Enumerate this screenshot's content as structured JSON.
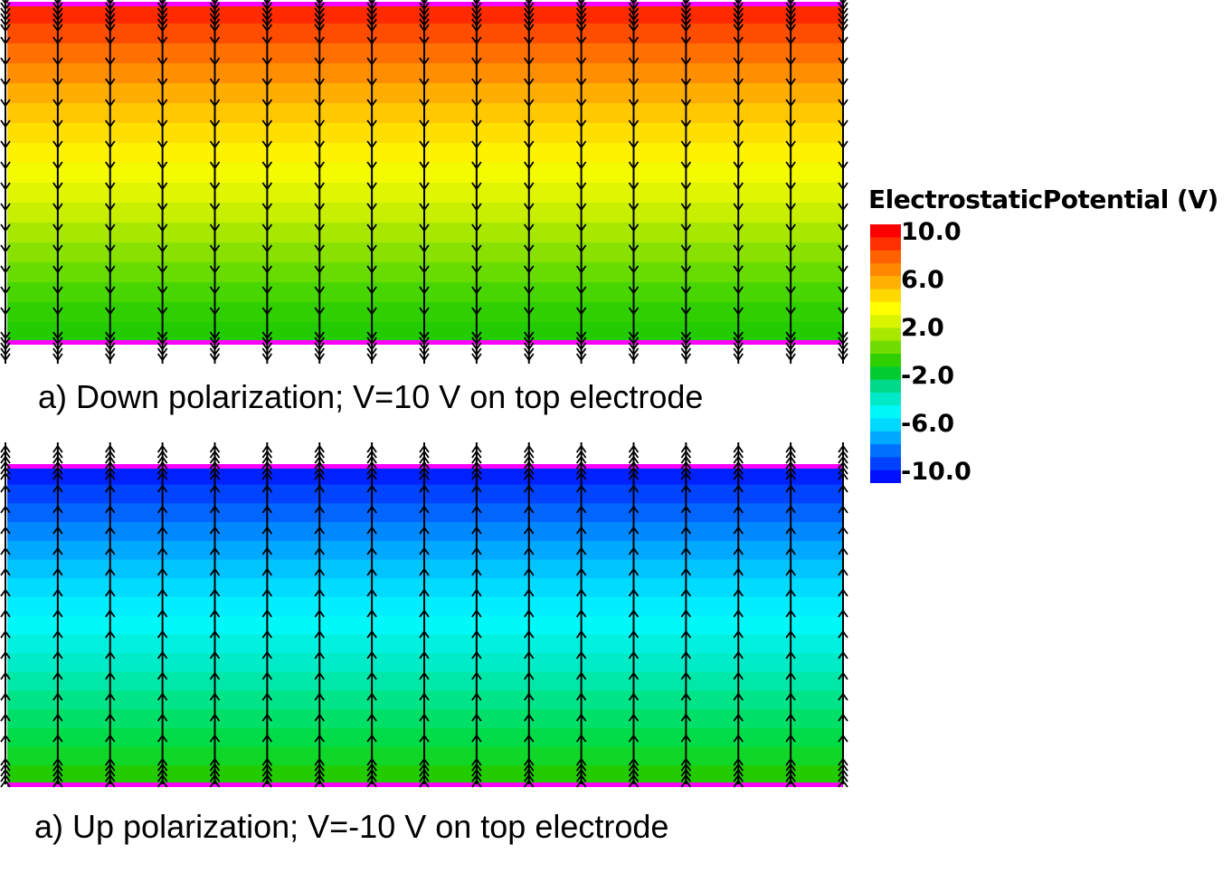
{
  "panels": [
    {
      "caption": "a) Down polarization; V=10 V on top electrode",
      "arrow_direction": "down",
      "field_colors": [
        "#ff2a00",
        "#ff4d00",
        "#ff7000",
        "#ff8f00",
        "#ffad00",
        "#ffc800",
        "#ffdf00",
        "#fff200",
        "#f4fa00",
        "#e0f500",
        "#c8ef00",
        "#a8e800",
        "#88e100",
        "#68dc00",
        "#48d600",
        "#30d000",
        "#22cc00"
      ],
      "electrode_color": "#ff00ff"
    },
    {
      "caption": "a) Up polarization; V=-10 V on top electrode",
      "arrow_direction": "up",
      "field_colors": [
        "#0022ff",
        "#0044ff",
        "#0066ff",
        "#0088ff",
        "#00a8ff",
        "#00c4ff",
        "#00dcff",
        "#00eeff",
        "#00f8f8",
        "#00f0e0",
        "#00ecc8",
        "#00e8a8",
        "#00e488",
        "#00e068",
        "#00dc48",
        "#10d628",
        "#22cc00"
      ],
      "electrode_color": "#ff00ff"
    }
  ],
  "legend": {
    "title": "ElectrostaticPotential (V)",
    "ticks": [
      "10.0",
      "6.0",
      "2.0",
      "-2.0",
      "-6.0",
      "-10.0"
    ],
    "tick_values": [
      10,
      6,
      2,
      -2,
      -6,
      -10
    ],
    "range": [
      -10,
      10
    ],
    "colors": [
      "#ff0000",
      "#ff3000",
      "#ff6000",
      "#ff8800",
      "#ffb000",
      "#ffd800",
      "#ffff00",
      "#d8f400",
      "#a8e800",
      "#70dc00",
      "#30d000",
      "#00cc30",
      "#00d88a",
      "#00e8c8",
      "#00f8f8",
      "#00d8ff",
      "#00a8ff",
      "#0070ff",
      "#0040ff",
      "#0010ff"
    ]
  }
}
